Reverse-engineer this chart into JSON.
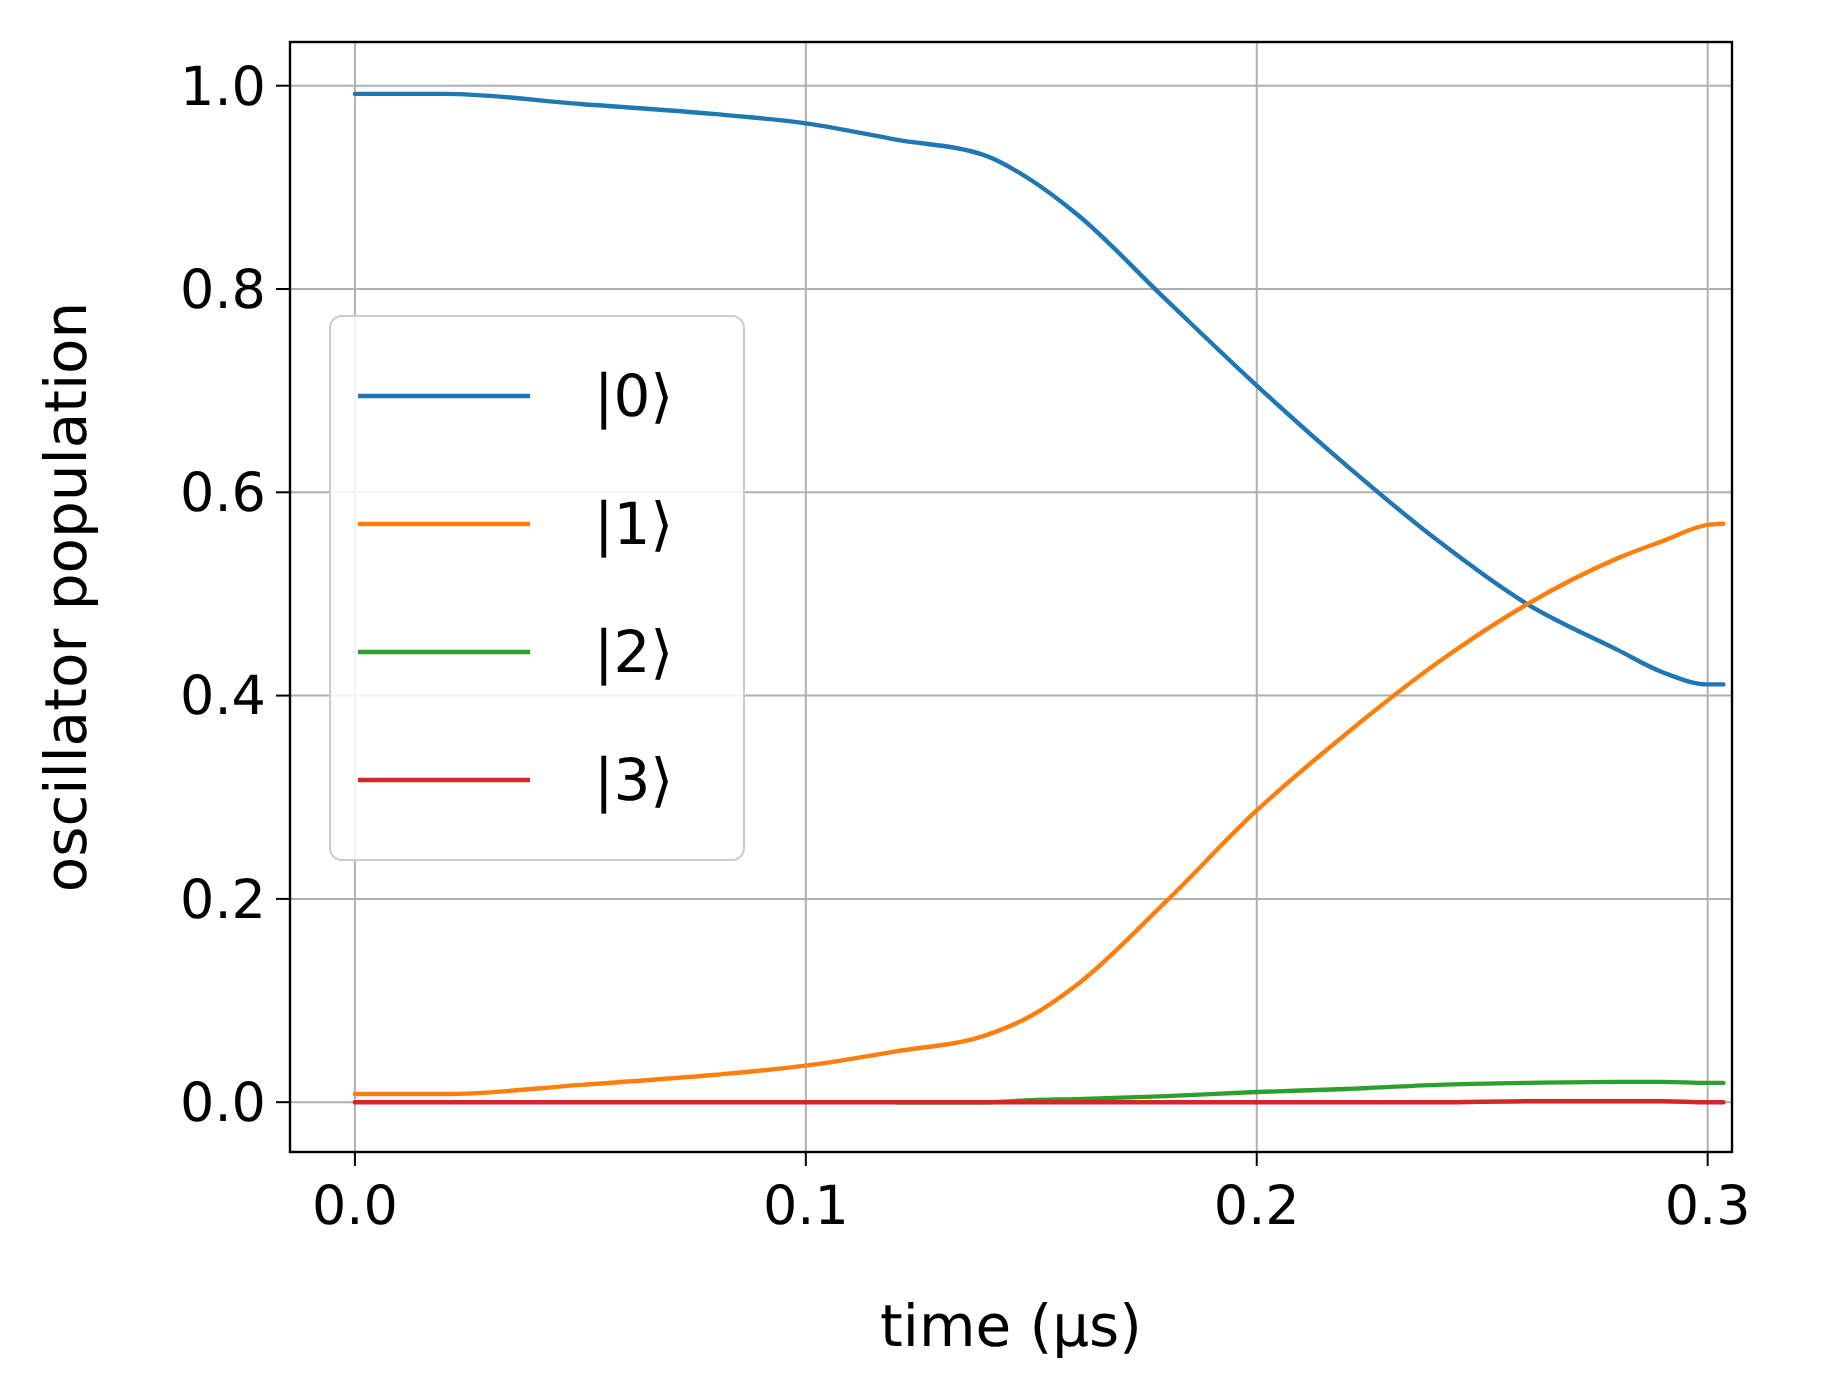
{
  "chart_data": {
    "type": "line",
    "xlabel": "time (μs)",
    "ylabel": "oscillator population",
    "xlim": [
      -0.0144,
      0.3054
    ],
    "ylim": [
      -0.049,
      1.043
    ],
    "xticks": [
      {
        "value": 0,
        "label": "0.0"
      },
      {
        "value": 0.1,
        "label": "0.1"
      },
      {
        "value": 0.2,
        "label": "0.2"
      },
      {
        "value": 0.3,
        "label": "0.3"
      }
    ],
    "yticks": [
      {
        "value": 0,
        "label": "0.0"
      },
      {
        "value": 0.2,
        "label": "0.2"
      },
      {
        "value": 0.4,
        "label": "0.4"
      },
      {
        "value": 0.6,
        "label": "0.6"
      },
      {
        "value": 0.8,
        "label": "0.8"
      },
      {
        "value": 1,
        "label": "1.0"
      }
    ],
    "grid": true,
    "legend": "left",
    "line_style": "solid",
    "marker": "none",
    "x": [
      0,
      0.02,
      0.05,
      0.08,
      0.1,
      0.12,
      0.14,
      0.15,
      0.16,
      0.18,
      0.2,
      0.22,
      0.24,
      0.26,
      0.28,
      0.29,
      0.3,
      0.3035
    ],
    "series": [
      {
        "name": "|0⟩",
        "color": "#1f77b4",
        "values": [
          0.992,
          0.992,
          0.982,
          0.972,
          0.963,
          0.947,
          0.931,
          0.907,
          0.874,
          0.789,
          0.705,
          0.626,
          0.553,
          0.49,
          0.445,
          0.423,
          0.411,
          0.411
        ]
      },
      {
        "name": "|1⟩",
        "color": "#ff7f0e",
        "values": [
          0.008,
          0.008,
          0.017,
          0.027,
          0.036,
          0.05,
          0.066,
          0.085,
          0.115,
          0.198,
          0.287,
          0.363,
          0.432,
          0.49,
          0.535,
          0.552,
          0.568,
          0.569
        ]
      },
      {
        "name": "|2⟩",
        "color": "#2ca02c",
        "values": [
          null,
          null,
          null,
          null,
          null,
          0,
          0,
          0.002,
          0.003,
          0.006,
          0.01,
          0.013,
          0.017,
          0.019,
          0.02,
          0.02,
          0.019,
          0.019
        ]
      },
      {
        "name": "|3⟩",
        "color": "#d62728",
        "values": [
          0,
          0,
          0,
          0,
          0,
          0,
          0,
          0,
          0,
          0,
          0,
          0,
          0,
          0.001,
          0.001,
          0.001,
          0,
          0
        ]
      }
    ]
  }
}
